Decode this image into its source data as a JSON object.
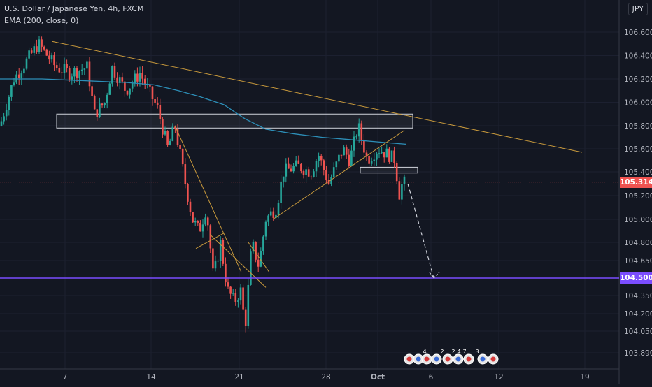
{
  "header": {
    "title": "U.S. Dollar / Japanese Yen, 4h, FXCM",
    "indicator": "EMA (200, close, 0)",
    "currency": "JPY"
  },
  "price_axis": {
    "ticks": [
      "106.600",
      "106.400",
      "106.200",
      "106.000",
      "105.800",
      "105.600",
      "105.400",
      "105.200",
      "105.000",
      "104.800",
      "104.650",
      "104.500",
      "104.350",
      "104.200",
      "104.050",
      "103.890"
    ]
  },
  "time_axis": {
    "ticks": [
      "7",
      "14",
      "21",
      "28",
      "Oct",
      "6",
      "12",
      "19"
    ]
  },
  "markers": {
    "price_current": "105.314",
    "price_level": "104.500",
    "event_labels": [
      "4",
      "2",
      "2",
      "4",
      "7",
      "3"
    ]
  },
  "colors": {
    "background": "#131722",
    "up": "#26a69a",
    "down": "#ef5350",
    "ema": "#2d8fb8",
    "trendline": "#c99a3c",
    "level": "#7b4dff",
    "current_price": "#ef5350"
  },
  "chart_data": {
    "type": "candlestick",
    "title": "U.S. Dollar / Japanese Yen, 4h, FXCM",
    "timeframe": "4h",
    "x_ticks": [
      "7",
      "14",
      "21",
      "28",
      "Oct",
      "6",
      "12",
      "19"
    ],
    "y_range": [
      103.8,
      106.75
    ],
    "current_price": 105.314,
    "horizontal_level": 104.5,
    "series": [
      {
        "name": "EMA (200, close, 0)",
        "points": [
          [
            0,
            106.2
          ],
          [
            30,
            106.2
          ],
          [
            60,
            106.2
          ],
          [
            100,
            106.19
          ],
          [
            140,
            106.18
          ],
          [
            180,
            106.17
          ],
          [
            220,
            106.15
          ],
          [
            255,
            106.1
          ],
          [
            285,
            106.05
          ],
          [
            320,
            105.98
          ],
          [
            350,
            105.86
          ],
          [
            380,
            105.77
          ],
          [
            420,
            105.73
          ],
          [
            460,
            105.7
          ],
          [
            500,
            105.68
          ],
          [
            540,
            105.66
          ],
          [
            580,
            105.64
          ]
        ]
      }
    ],
    "candle_path": [
      [
        0,
        105.8
      ],
      [
        20,
        106.2
      ],
      [
        55,
        106.5
      ],
      [
        80,
        106.3
      ],
      [
        100,
        106.25
      ],
      [
        125,
        106.3
      ],
      [
        135,
        105.9
      ],
      [
        150,
        106.0
      ],
      [
        160,
        106.3
      ],
      [
        180,
        106.1
      ],
      [
        200,
        106.25
      ],
      [
        225,
        105.95
      ],
      [
        240,
        105.6
      ],
      [
        250,
        105.8
      ],
      [
        265,
        105.3
      ],
      [
        275,
        105.0
      ],
      [
        285,
        104.9
      ],
      [
        295,
        105.1
      ],
      [
        305,
        104.5
      ],
      [
        315,
        104.8
      ],
      [
        325,
        104.4
      ],
      [
        335,
        104.3
      ],
      [
        345,
        104.4
      ],
      [
        350,
        104.05
      ],
      [
        360,
        104.8
      ],
      [
        370,
        104.6
      ],
      [
        380,
        105.0
      ],
      [
        395,
        105.1
      ],
      [
        405,
        105.4
      ],
      [
        425,
        105.45
      ],
      [
        445,
        105.4
      ],
      [
        455,
        105.55
      ],
      [
        470,
        105.3
      ],
      [
        490,
        105.6
      ],
      [
        500,
        105.5
      ],
      [
        512,
        105.8
      ],
      [
        525,
        105.5
      ],
      [
        540,
        105.6
      ],
      [
        555,
        105.55
      ],
      [
        565,
        105.5
      ],
      [
        570,
        105.2
      ],
      [
        575,
        105.3
      ],
      [
        580,
        105.31
      ]
    ],
    "trendlines": [
      {
        "from": [
          75,
          106.52
        ],
        "to": [
          832,
          105.57
        ]
      },
      {
        "from": [
          250,
          105.8
        ],
        "to": [
          345,
          104.55
        ]
      },
      {
        "from": [
          300,
          104.87
        ],
        "to": [
          380,
          104.42
        ]
      },
      {
        "from": [
          320,
          104.88
        ],
        "to": [
          280,
          104.75
        ]
      },
      {
        "from": [
          355,
          104.8
        ],
        "to": [
          385,
          104.55
        ]
      },
      {
        "from": [
          390,
          105.0
        ],
        "to": [
          578,
          105.76
        ]
      }
    ],
    "zones": [
      {
        "x1": 81,
        "x2": 590,
        "y_top": 105.9,
        "y_bottom": 105.78
      },
      {
        "x1": 515,
        "x2": 597,
        "y_top": 105.44,
        "y_bottom": 105.39
      }
    ],
    "projection": [
      [
        583,
        105.3
      ],
      [
        620,
        104.5
      ],
      [
        628,
        104.55
      ]
    ]
  }
}
